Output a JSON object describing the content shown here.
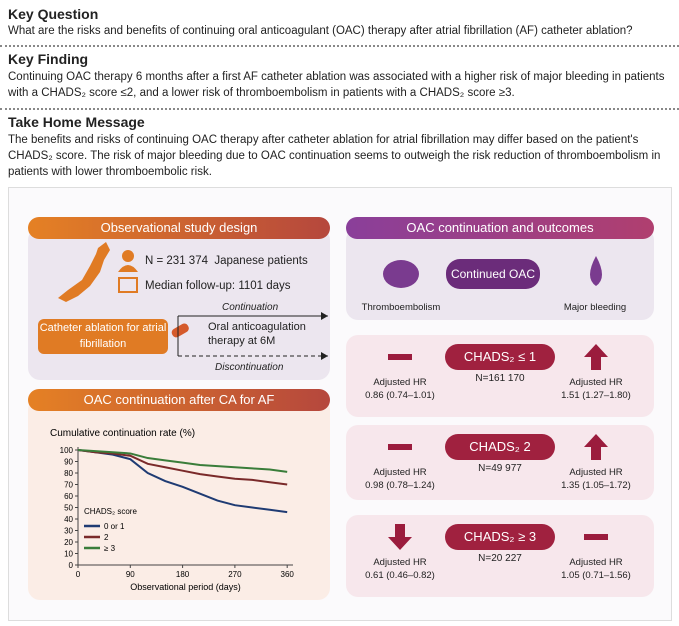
{
  "key_question": {
    "heading": "Key Question",
    "text": "What are the risks and benefits of continuing oral anticoagulant (OAC) therapy after atrial fibrillation (AF) catheter ablation?"
  },
  "key_finding": {
    "heading": "Key Finding",
    "text": "Continuing OAC therapy 6 months after a first AF catheter ablation was associated with a higher risk of major bleeding in patients with a CHADS₂ score ≤2, and a lower risk of thromboembolism in patients with a CHADS₂ score ≥3."
  },
  "take_home": {
    "heading": "Take Home Message",
    "text": "The benefits and risks of continuing OAC therapy after catheter ablation for atrial fibrillation may differ based on the patient's CHADS₂ score. The risk of major bleeding due to OAC continuation seems to outweigh the risk reduction of thromboembolism in patients with lower thromboembolic risk."
  },
  "design": {
    "title": "Observational study design",
    "n": "N = 231 374",
    "population": "Japanese patients",
    "followup": "Median follow-up: 1101 days",
    "procedure": "Catheter ablation for atrial fibrillation",
    "continuation": "Continuation",
    "therapy": "Oral anticoagulation therapy at 6M",
    "discontinuation": "Discontinuation"
  },
  "chart_panel": {
    "title": "OAC continuation after CA for AF"
  },
  "chart_data": {
    "type": "line",
    "title": "Cumulative continuation rate (%)",
    "x_label": "Observational period (days)",
    "x": [
      0,
      30,
      60,
      90,
      120,
      150,
      180,
      210,
      240,
      270,
      300,
      330,
      360
    ],
    "series": [
      {
        "name": "0 or 1",
        "color": "#1f3b73",
        "values": [
          100,
          98,
          96,
          92,
          80,
          73,
          68,
          62,
          56,
          52,
          50,
          48,
          46
        ]
      },
      {
        "name": "2",
        "color": "#7a2a2a",
        "values": [
          100,
          98,
          97,
          95,
          88,
          85,
          82,
          79,
          77,
          75,
          74,
          72,
          70
        ]
      },
      {
        "name": "≥ 3",
        "color": "#3a7d3a",
        "values": [
          100,
          99,
          98,
          97,
          93,
          91,
          89,
          87,
          86,
          85,
          84,
          83,
          81
        ]
      }
    ],
    "legend_title": "CHADS₂ score",
    "xlim": [
      0,
      370
    ],
    "ylim": [
      0,
      100
    ],
    "xticks": [
      0,
      90,
      180,
      270,
      360
    ],
    "yticks": [
      0,
      10,
      20,
      30,
      40,
      50,
      60,
      70,
      80,
      90,
      100
    ],
    "grid": false
  },
  "outcomes": {
    "title": "OAC continuation and outcomes",
    "treatment": "Continued OAC",
    "left_outcome": "Thromboembolism",
    "right_outcome": "Major bleeding",
    "rows": [
      {
        "group": "CHADS₂ ≤ 1",
        "n": "N=161 170",
        "left_label": "Adjusted HR",
        "left_hr": "0.86 (0.74–1.01)",
        "right_label": "Adjusted HR",
        "right_hr": "1.51 (1.27–1.80)"
      },
      {
        "group": "CHADS₂ 2",
        "n": "N=49 977",
        "left_label": "Adjusted HR",
        "left_hr": "0.98 (0.78–1.24)",
        "right_label": "Adjusted HR",
        "right_hr": "1.35 (1.05–1.72)"
      },
      {
        "group": "CHADS₂ ≥ 3",
        "n": "N=20 227",
        "left_label": "Adjusted HR",
        "left_hr": "0.61 (0.46–0.82)",
        "right_label": "Adjusted HR",
        "right_hr": "1.05 (0.71–1.56)"
      }
    ]
  }
}
